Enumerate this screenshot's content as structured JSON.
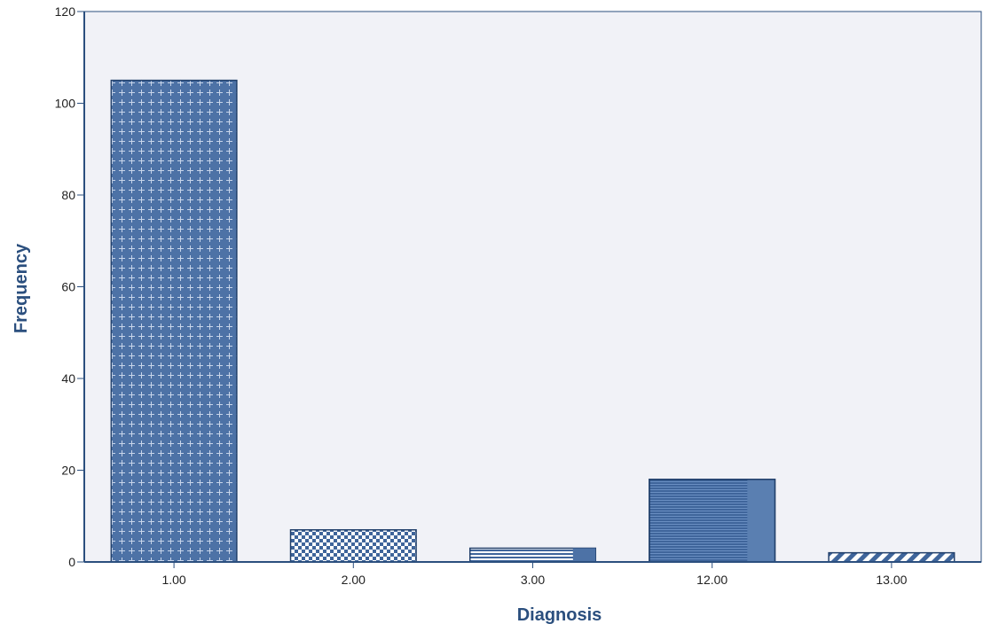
{
  "chart_data": {
    "type": "bar",
    "categories": [
      "1.00",
      "2.00",
      "3.00",
      "12.00",
      "13.00"
    ],
    "values": [
      105,
      7,
      3,
      18,
      2
    ],
    "xlabel": "Diagnosis",
    "ylabel": "Frequency",
    "ylim": [
      0,
      120
    ],
    "yticks": [
      "0",
      "20",
      "40",
      "60",
      "80",
      "100",
      "120"
    ],
    "grid": false,
    "legend": "none"
  },
  "colors": {
    "plot_background": "#f1f2f7",
    "bar_fill": "#4d72a6",
    "bar_stroke": "#22406b",
    "axis": "#2b4f7e"
  }
}
